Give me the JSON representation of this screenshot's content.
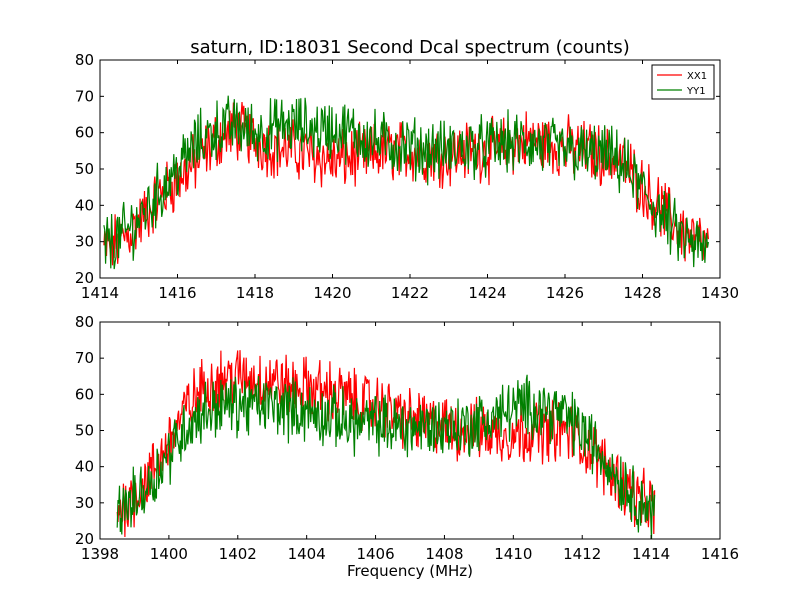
{
  "title": "saturn, ID:18031 Second Dcal spectrum (counts)",
  "xlabel": "Frequency (MHz)",
  "colors": {
    "XX1": "#ff0000",
    "YY1": "#008000"
  },
  "chart_data": [
    {
      "type": "line",
      "title": "saturn, ID:18031 Second Dcal spectrum (counts)",
      "xlabel": "",
      "ylabel": "",
      "xlim": [
        1414,
        1430
      ],
      "ylim": [
        20,
        80
      ],
      "xticks": [
        1414,
        1416,
        1418,
        1420,
        1422,
        1424,
        1426,
        1428,
        1430
      ],
      "yticks": [
        20,
        30,
        40,
        50,
        60,
        70,
        80
      ],
      "legend": {
        "placement": "top-right",
        "entries": [
          "XX1",
          "YY1"
        ]
      },
      "grid": false,
      "x_range_data": [
        1414.1,
        1429.7
      ],
      "series": [
        {
          "name": "XX1",
          "x": [
            1414.1,
            1414.5,
            1415.0,
            1415.5,
            1416.0,
            1416.5,
            1417.0,
            1417.5,
            1418.0,
            1418.5,
            1419.0,
            1419.5,
            1420.0,
            1420.5,
            1421.0,
            1421.5,
            1422.0,
            1422.5,
            1423.0,
            1423.5,
            1424.0,
            1424.5,
            1425.0,
            1425.5,
            1426.0,
            1426.5,
            1427.0,
            1427.5,
            1428.0,
            1428.5,
            1429.0,
            1429.7
          ],
          "y": [
            28,
            30,
            35,
            42,
            47,
            52,
            58,
            61,
            58,
            56,
            55,
            54,
            52,
            53,
            54,
            55,
            55,
            54,
            54,
            55,
            55,
            56,
            58,
            57,
            56,
            55,
            54,
            52,
            45,
            39,
            33,
            28
          ]
        },
        {
          "name": "YY1",
          "x": [
            1414.1,
            1414.5,
            1415.0,
            1415.5,
            1416.0,
            1416.5,
            1417.0,
            1417.5,
            1418.0,
            1418.5,
            1419.0,
            1419.5,
            1420.0,
            1420.5,
            1421.0,
            1421.5,
            1422.0,
            1422.5,
            1423.0,
            1423.5,
            1424.0,
            1424.5,
            1425.0,
            1425.5,
            1426.0,
            1426.5,
            1427.0,
            1427.5,
            1428.0,
            1428.5,
            1429.0,
            1429.7
          ],
          "y": [
            29,
            31,
            36,
            43,
            50,
            57,
            61,
            62,
            60,
            61,
            62,
            61,
            61,
            60,
            58,
            57,
            56,
            55,
            55,
            56,
            56,
            57,
            57,
            56,
            55,
            54,
            54,
            51,
            44,
            37,
            31,
            27
          ]
        }
      ]
    },
    {
      "type": "line",
      "title": "",
      "xlabel": "Frequency (MHz)",
      "ylabel": "",
      "xlim": [
        1398,
        1416
      ],
      "ylim": [
        20,
        80
      ],
      "xticks": [
        1398,
        1400,
        1402,
        1404,
        1406,
        1408,
        1410,
        1412,
        1414,
        1416
      ],
      "yticks": [
        20,
        30,
        40,
        50,
        60,
        70,
        80
      ],
      "legend": {
        "placement": "none",
        "entries": []
      },
      "grid": false,
      "x_range_data": [
        1398.5,
        1414.1
      ],
      "series": [
        {
          "name": "XX1",
          "x": [
            1398.5,
            1399.0,
            1399.5,
            1400.0,
            1400.5,
            1401.0,
            1401.5,
            1402.0,
            1402.5,
            1403.0,
            1403.5,
            1404.0,
            1404.5,
            1405.0,
            1405.5,
            1406.0,
            1406.5,
            1407.0,
            1407.5,
            1408.0,
            1408.5,
            1409.0,
            1409.5,
            1410.0,
            1410.5,
            1411.0,
            1411.5,
            1412.0,
            1412.5,
            1413.0,
            1413.5,
            1414.1
          ],
          "y": [
            28,
            32,
            38,
            47,
            56,
            62,
            64,
            65,
            64,
            64,
            62,
            62,
            61,
            60,
            58,
            57,
            55,
            53,
            52,
            51,
            50,
            50,
            49,
            49,
            50,
            50,
            50,
            47,
            42,
            37,
            32,
            28
          ]
        },
        {
          "name": "YY1",
          "x": [
            1398.5,
            1399.0,
            1399.5,
            1400.0,
            1400.5,
            1401.0,
            1401.5,
            1402.0,
            1402.5,
            1403.0,
            1403.5,
            1404.0,
            1404.5,
            1405.0,
            1405.5,
            1406.0,
            1406.5,
            1407.0,
            1407.5,
            1408.0,
            1408.5,
            1409.0,
            1409.5,
            1410.0,
            1410.5,
            1411.0,
            1411.5,
            1412.0,
            1412.5,
            1413.0,
            1413.5,
            1414.1
          ],
          "y": [
            27,
            31,
            36,
            44,
            51,
            55,
            57,
            57,
            57,
            57,
            56,
            55,
            54,
            53,
            52,
            52,
            51,
            51,
            51,
            51,
            51,
            52,
            54,
            56,
            57,
            56,
            54,
            50,
            44,
            38,
            32,
            27
          ]
        }
      ]
    }
  ]
}
